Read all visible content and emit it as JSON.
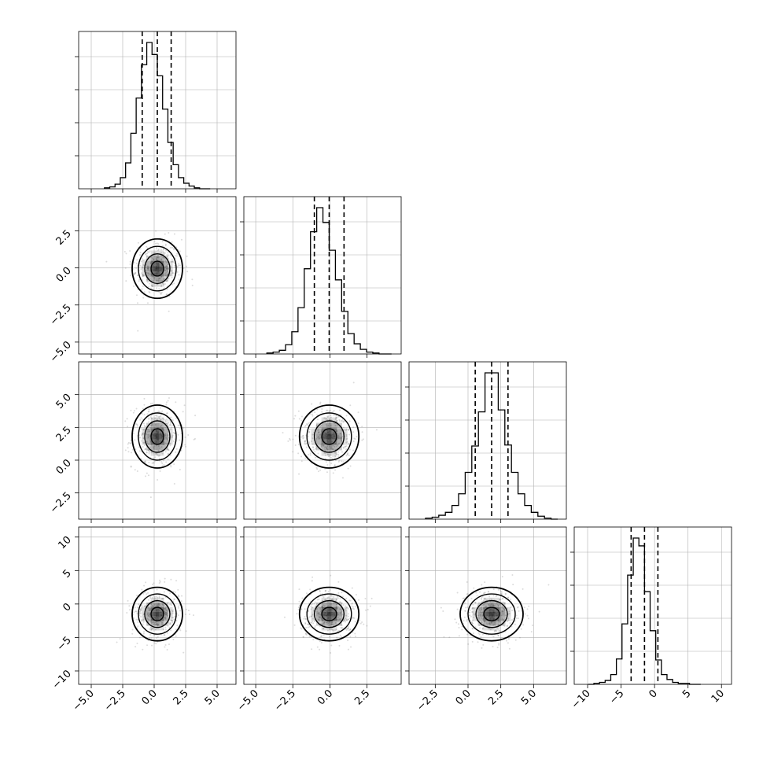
{
  "chart_data": {
    "type": "corner",
    "title": "",
    "n_params": 4,
    "quantiles": [
      0.16,
      0.5,
      0.84
    ],
    "params": [
      {
        "name": "",
        "mean": 0.25,
        "sigma": 1.0,
        "range": [
          -6.0,
          6.5
        ],
        "ticks": [
          -5.0,
          -2.5,
          0.0,
          2.5,
          5.0
        ],
        "tick_labels": [
          "−5.0",
          "−2.5",
          "0.0",
          "2.5",
          "5.0"
        ],
        "quantile_values": [
          -0.95,
          0.25,
          1.35
        ]
      },
      {
        "name": "",
        "mean": -0.05,
        "sigma": 1.0,
        "range": [
          -5.8,
          4.8
        ],
        "ticks": [
          -5.0,
          -2.5,
          0.0,
          2.5
        ],
        "tick_labels": [
          "−5.0",
          "−2.5",
          "0.0",
          "2.5"
        ],
        "quantile_values": [
          -1.05,
          -0.05,
          0.95
        ]
      },
      {
        "name": "",
        "mean": 1.8,
        "sigma": 1.2,
        "range": [
          -4.5,
          7.5
        ],
        "ticks": [
          -2.5,
          0.0,
          2.5,
          5.0
        ],
        "tick_labels": [
          "−2.5",
          "0.0",
          "2.5",
          "5.0"
        ],
        "quantile_values": [
          0.55,
          1.8,
          3.05
        ]
      },
      {
        "name": "",
        "mean": -1.5,
        "sigma": 2.0,
        "range": [
          -12.0,
          11.5
        ],
        "ticks": [
          -10,
          -5,
          0,
          5,
          10
        ],
        "tick_labels": [
          "−10",
          "−5",
          "0",
          "5",
          "10"
        ],
        "quantile_values": [
          -3.5,
          -1.5,
          0.5
        ]
      }
    ],
    "histograms": [
      {
        "param": 0,
        "bins": 20,
        "counts": [
          1,
          2,
          5,
          12,
          28,
          60,
          98,
          134,
          158,
          145,
          122,
          86,
          50,
          26,
          12,
          6,
          3,
          1,
          0,
          0
        ]
      },
      {
        "param": 1,
        "bins": 20,
        "counts": [
          1,
          2,
          4,
          10,
          24,
          50,
          92,
          132,
          158,
          142,
          112,
          80,
          46,
          22,
          11,
          5,
          2,
          1,
          0,
          0
        ]
      },
      {
        "param": 2,
        "bins": 20,
        "counts": [
          1,
          2,
          4,
          7,
          14,
          26,
          48,
          75,
          110,
          150,
          150,
          112,
          76,
          48,
          26,
          14,
          7,
          3,
          1,
          0
        ]
      },
      {
        "param": 3,
        "bins": 20,
        "counts": [
          0,
          1,
          2,
          4,
          10,
          26,
          62,
          112,
          150,
          142,
          95,
          55,
          25,
          10,
          5,
          2,
          1,
          1,
          0,
          0
        ]
      }
    ],
    "pairs": [
      {
        "x_param": 0,
        "y_param": 1
      },
      {
        "x_param": 0,
        "y_param": 2
      },
      {
        "x_param": 1,
        "y_param": 2
      },
      {
        "x_param": 0,
        "y_param": 3
      },
      {
        "x_param": 1,
        "y_param": 3
      },
      {
        "x_param": 2,
        "y_param": 3
      }
    ],
    "contour_levels_sigma": [
      0.5,
      1.0,
      1.5,
      2.0
    ],
    "grid": true,
    "colors": {
      "line": "#000000",
      "grid": "#b0b0b0",
      "points": "#808080",
      "density": "#000000"
    }
  }
}
